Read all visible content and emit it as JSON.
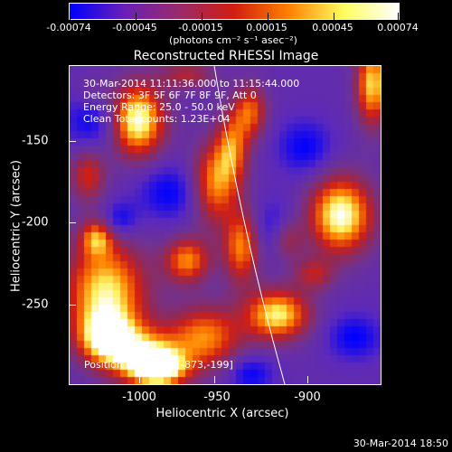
{
  "colorbar": {
    "ticks": [
      "-0.00074",
      "-0.00045",
      "-0.00015",
      "0.00015",
      "0.00045",
      "0.00074"
    ],
    "unit": "(photons cm⁻² s⁻¹ asec⁻²)",
    "colors": [
      "#0000ff",
      "#6a1fb6",
      "#9a2a6a",
      "#d21e10",
      "#ff8200",
      "#ffff60",
      "#ffffff"
    ]
  },
  "title": "Reconstructed RHESSI Image",
  "info": {
    "line1": "30-Mar-2014 11:11:36.000 to 11:15:44.000",
    "line2": "Detectors: 3F 5F 6F 7F 8F 9F, Att 0",
    "line3": "Energy Range: 25.0 - 50.0 keV",
    "line4": "Clean  Total counts: 1.23E+04"
  },
  "peak_text": "Position of Peak = [-873,-199]",
  "axes": {
    "xlabel": "Heliocentric X (arcsec)",
    "ylabel": "Heliocentric Y (arcsec)",
    "xticks": [
      "-1000",
      "-950",
      "-900"
    ],
    "yticks": [
      "-150",
      "-200",
      "-250"
    ]
  },
  "timestamp": "30-Mar-2014 18:50"
}
